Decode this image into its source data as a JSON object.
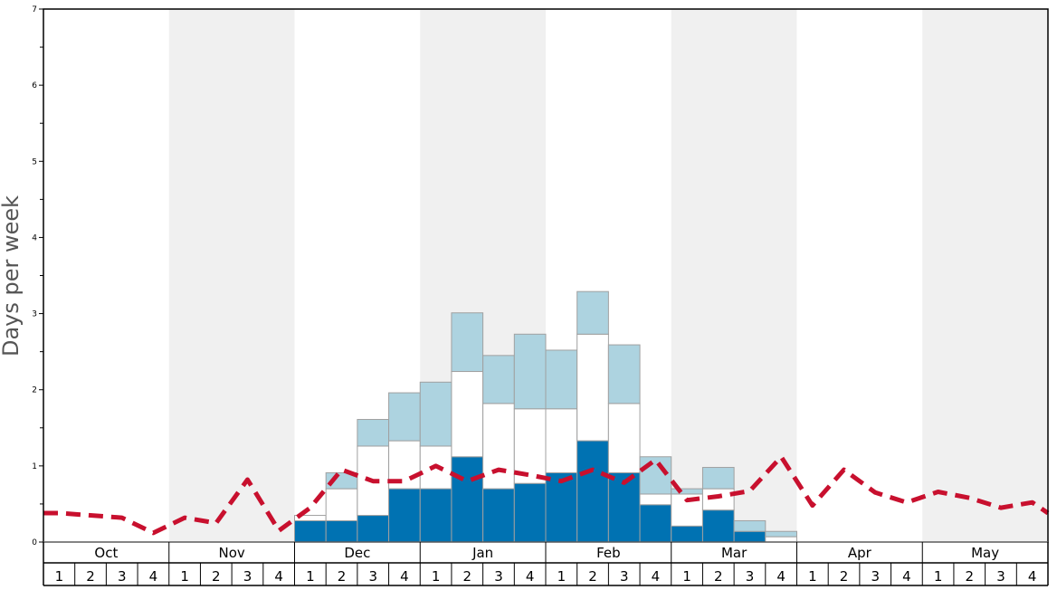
{
  "chart_data": {
    "type": "bar",
    "ylabel": "Days per week",
    "ylim": [
      0,
      7
    ],
    "y_ticks": [
      0,
      1,
      2,
      3,
      4,
      5,
      6,
      7
    ],
    "months": [
      "Oct",
      "Nov",
      "Dec",
      "Jan",
      "Feb",
      "Mar",
      "Apr",
      "May"
    ],
    "week_labels": [
      "1",
      "2",
      "3",
      "4"
    ],
    "shaded_months": [
      "Nov",
      "Jan",
      "Mar",
      "May"
    ],
    "colors": {
      "dark": "#0072b2",
      "white": "#ffffff",
      "light": "#add3e0",
      "line": "#c8102e",
      "band": "#f0f0f0",
      "bar_border": "#a0a0a0"
    },
    "series": [
      {
        "values": [
          0,
          0,
          0,
          0,
          0,
          0,
          0,
          0,
          0.28,
          0.28,
          0.35,
          0.7,
          0.7,
          1.12,
          0.7,
          0.77,
          0.91,
          1.33,
          0.91,
          0.49,
          0.21,
          0.42,
          0.14,
          0.0,
          0,
          0,
          0,
          0,
          0,
          0,
          0,
          0
        ]
      },
      {
        "values": [
          0,
          0,
          0,
          0,
          0,
          0,
          0,
          0,
          0.07,
          0.42,
          0.91,
          0.63,
          0.56,
          1.12,
          1.12,
          0.98,
          0.84,
          1.4,
          0.91,
          0.14,
          0.42,
          0.28,
          0.0,
          0.07,
          0,
          0,
          0,
          0,
          0,
          0,
          0,
          0
        ]
      },
      {
        "values": [
          0,
          0,
          0,
          0,
          0,
          0,
          0,
          0,
          0.0,
          0.21,
          0.35,
          0.63,
          0.84,
          0.77,
          0.63,
          0.98,
          0.77,
          0.56,
          0.77,
          0.49,
          0.07,
          0.28,
          0.14,
          0.07,
          0,
          0,
          0,
          0,
          0,
          0,
          0,
          0
        ]
      },
      {
        "values": [
          0.38,
          0.35,
          0.32,
          0.12,
          0.32,
          0.25,
          0.82,
          0.15,
          0.45,
          0.95,
          0.8,
          0.8,
          1.0,
          0.8,
          0.95,
          0.88,
          0.8,
          0.95,
          0.78,
          1.08,
          0.55,
          0.6,
          0.67,
          1.12,
          0.48,
          0.95,
          0.65,
          0.52,
          0.66,
          0.58,
          0.45,
          0.52
        ]
      }
    ],
    "last_point": 0.38
  }
}
